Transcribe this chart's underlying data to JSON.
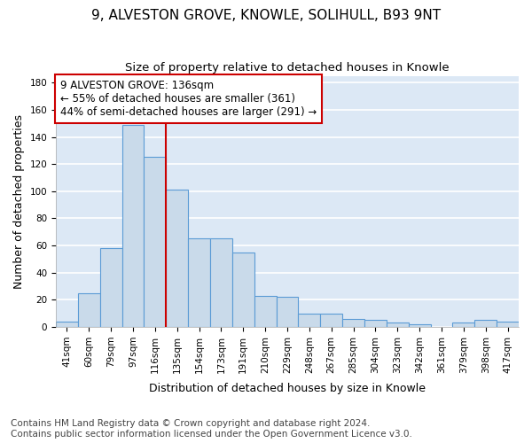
{
  "title_line1": "9, ALVESTON GROVE, KNOWLE, SOLIHULL, B93 9NT",
  "title_line2": "Size of property relative to detached houses in Knowle",
  "xlabel": "Distribution of detached houses by size in Knowle",
  "ylabel": "Number of detached properties",
  "categories": [
    "41sqm",
    "60sqm",
    "79sqm",
    "97sqm",
    "116sqm",
    "135sqm",
    "154sqm",
    "173sqm",
    "191sqm",
    "210sqm",
    "229sqm",
    "248sqm",
    "267sqm",
    "285sqm",
    "304sqm",
    "323sqm",
    "342sqm",
    "361sqm",
    "379sqm",
    "398sqm",
    "417sqm"
  ],
  "values": [
    4,
    25,
    58,
    149,
    125,
    101,
    65,
    65,
    55,
    23,
    22,
    10,
    10,
    6,
    5,
    3,
    2,
    0,
    3,
    5,
    4
  ],
  "bar_color": "#c9daea",
  "bar_edge_color": "#5b9bd5",
  "bar_width": 1.0,
  "vline_x": 5.0,
  "vline_color": "#cc0000",
  "annotation_text": "9 ALVESTON GROVE: 136sqm\n← 55% of detached houses are smaller (361)\n44% of semi-detached houses are larger (291) →",
  "annotation_box_color": "#ffffff",
  "annotation_box_edge": "#cc0000",
  "ylim": [
    0,
    185
  ],
  "yticks": [
    0,
    20,
    40,
    60,
    80,
    100,
    120,
    140,
    160,
    180
  ],
  "background_color": "#dce8f5",
  "grid_color": "#ffffff",
  "footer": "Contains HM Land Registry data © Crown copyright and database right 2024.\nContains public sector information licensed under the Open Government Licence v3.0.",
  "title_fontsize": 11,
  "subtitle_fontsize": 9.5,
  "xlabel_fontsize": 9,
  "ylabel_fontsize": 9,
  "tick_fontsize": 7.5,
  "annotation_fontsize": 8.5,
  "footer_fontsize": 7.5
}
